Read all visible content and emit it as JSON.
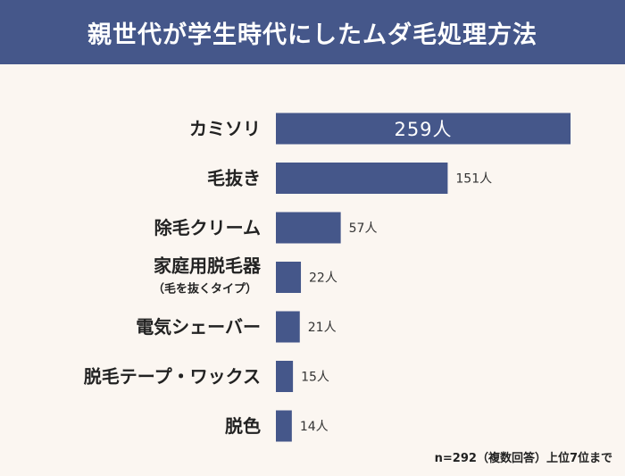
{
  "chart_data": {
    "type": "bar",
    "orientation": "horizontal",
    "title": "親世代が学生時代にしたムダ毛処理方法",
    "categories": [
      "カミソリ",
      "毛抜き",
      "除毛クリーム",
      "家庭用脱毛器",
      "電気シェーバー",
      "脱毛テープ・ワックス",
      "脱色"
    ],
    "category_sublabels": [
      "",
      "",
      "",
      "（毛を抜くタイプ）",
      "",
      "",
      ""
    ],
    "values": [
      259,
      151,
      57,
      22,
      21,
      15,
      14
    ],
    "value_labels": [
      "259人",
      "151人",
      "57人",
      "22人",
      "21人",
      "15人",
      "14人"
    ],
    "xlim": [
      0,
      259
    ],
    "grid": false,
    "bar_color": "#45578a",
    "title_bg_color": "#45578a",
    "background_color": "#fbf6f1",
    "footnote": "n=292（複数回答）上位7位まで"
  }
}
